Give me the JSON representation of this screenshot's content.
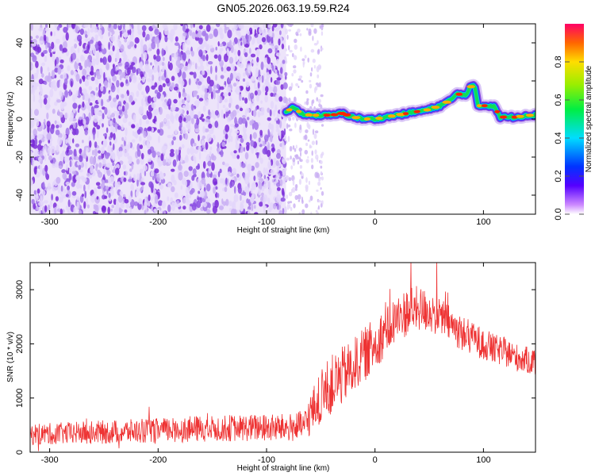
{
  "title": "GN05.2026.063.19.59.R24",
  "colors": {
    "spectrogram_noise": "#7a2bd8",
    "spectrogram_noise_light": "#d7c4f5",
    "snr_line": "#ee3333"
  },
  "chart_data": [
    {
      "type": "heatmap",
      "name": "spectrogram",
      "xlabel": "Height of straight line (km)",
      "ylabel": "Frequency (Hz)",
      "xlim": [
        -318,
        148
      ],
      "ylim": [
        -50,
        50
      ],
      "xticks": [
        -300,
        -200,
        -100,
        0,
        100
      ],
      "yticks": [
        -40,
        -20,
        0,
        20,
        40
      ],
      "xtick_labels": [
        "-300",
        "-200",
        "-100",
        "0",
        "100"
      ],
      "ytick_labels": [
        "-40",
        "-20",
        "0",
        "20",
        "40"
      ],
      "noise_region_km": [
        -318,
        -82
      ],
      "sparse_region_km": [
        -82,
        -48
      ],
      "signal_track": {
        "x": [
          -82,
          -75,
          -68,
          -60,
          -50,
          -40,
          -30,
          -20,
          -10,
          0,
          10,
          20,
          30,
          40,
          50,
          60,
          70,
          75,
          85,
          88,
          92,
          95,
          100,
          110,
          115,
          120,
          130,
          140,
          148
        ],
        "freq": [
          4,
          6,
          3,
          2,
          2,
          2,
          3,
          1,
          0,
          0,
          1,
          2,
          3,
          4,
          5,
          7,
          10,
          13,
          13,
          17,
          17,
          7,
          7,
          7,
          1,
          1,
          1,
          2,
          2
        ]
      },
      "colorbar": {
        "label": "Normalized spectral amplitude",
        "range": [
          0,
          1
        ],
        "ticks": [
          0.0,
          0.2,
          0.4,
          0.6,
          0.8
        ],
        "tick_labels": [
          "0.0",
          "0.2",
          "0.4",
          "0.6",
          "0.8"
        ]
      }
    },
    {
      "type": "line",
      "name": "snr",
      "xlabel": "Height of straight line (km)",
      "ylabel": "SNR (10 * v/v)",
      "xlim": [
        -318,
        148
      ],
      "ylim": [
        0,
        3500
      ],
      "xticks": [
        -300,
        -200,
        -100,
        0,
        100
      ],
      "yticks": [
        0,
        1000,
        2000,
        3000
      ],
      "xtick_labels": [
        "-300",
        "-200",
        "-100",
        "0",
        "100"
      ],
      "ytick_labels": [
        "0",
        "1000",
        "2000",
        "3000"
      ],
      "series": [
        {
          "name": "SNR",
          "x": [
            -318,
            -300,
            -250,
            -200,
            -150,
            -120,
            -100,
            -80,
            -65,
            -60,
            -50,
            -40,
            -30,
            -20,
            -10,
            0,
            10,
            20,
            30,
            40,
            50,
            60,
            70,
            80,
            90,
            100,
            110,
            120,
            130,
            140,
            148
          ],
          "mean": [
            330,
            340,
            370,
            400,
            440,
            450,
            450,
            450,
            480,
            700,
            1000,
            1250,
            1400,
            1600,
            1800,
            2000,
            2250,
            2450,
            2600,
            2650,
            2600,
            2500,
            2350,
            2200,
            2100,
            2000,
            1900,
            1850,
            1750,
            1700,
            1650
          ],
          "spread": [
            200,
            200,
            220,
            230,
            250,
            250,
            260,
            260,
            300,
            400,
            500,
            550,
            550,
            500,
            500,
            500,
            450,
            450,
            450,
            420,
            400,
            380,
            350,
            330,
            300,
            300,
            280,
            270,
            260,
            250,
            250
          ]
        }
      ]
    }
  ]
}
